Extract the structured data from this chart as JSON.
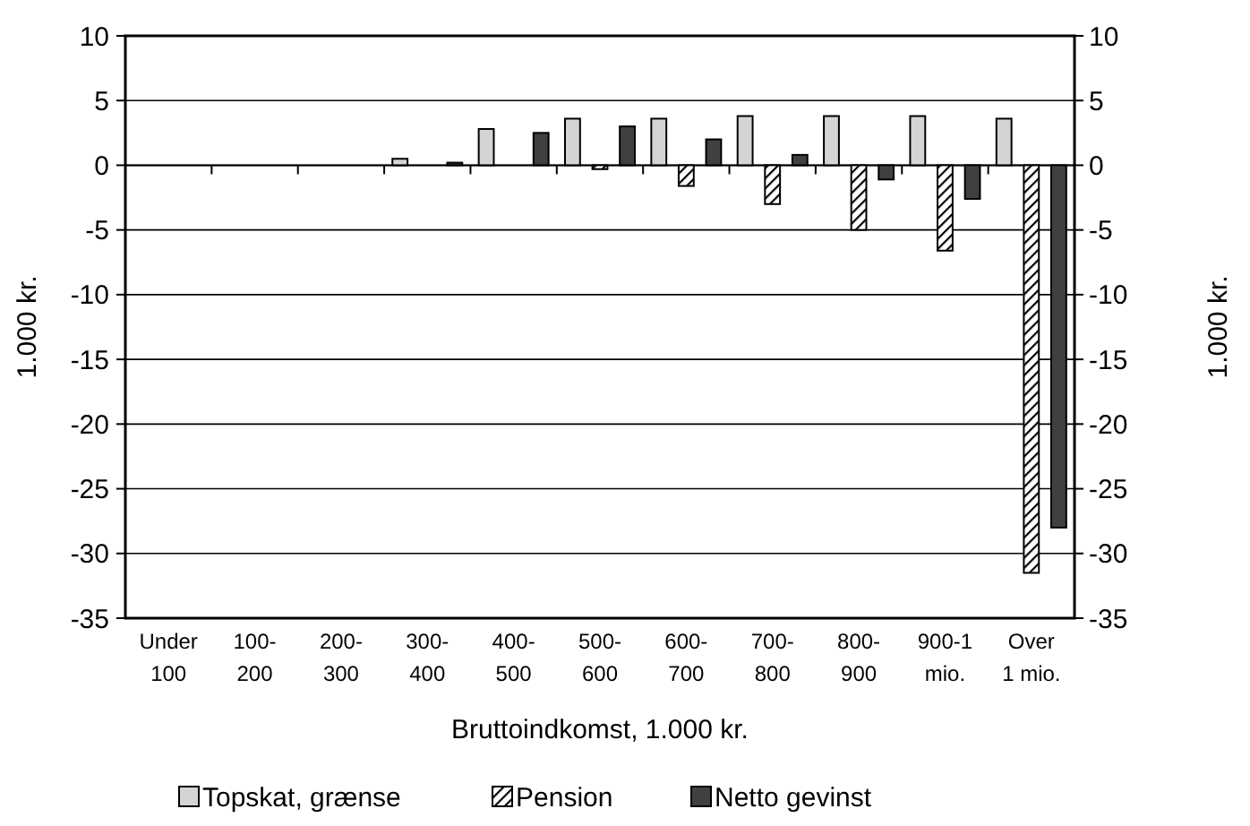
{
  "chart_data": {
    "type": "bar",
    "xlabel": "Bruttoindkomst, 1.000 kr.",
    "ylabel": "1.000 kr.",
    "y2label": "1.000 kr.",
    "categories": [
      "Under 100",
      "100-200",
      "200-300",
      "300-400",
      "400-500",
      "500-600",
      "600-700",
      "700-800",
      "800-900",
      "900-1 mio.",
      "Over 1 mio."
    ],
    "series": [
      {
        "name": "Topskat, grænse",
        "color": "#d4d4d4",
        "values": [
          null,
          null,
          null,
          0.5,
          2.8,
          3.6,
          3.6,
          3.8,
          3.8,
          3.8,
          3.6
        ]
      },
      {
        "name": "Pension",
        "color": "#000000",
        "values": [
          null,
          null,
          null,
          null,
          null,
          -0.3,
          -1.6,
          -3,
          -5,
          -6.6,
          -31.5
        ]
      },
      {
        "name": "Netto gevinst",
        "color": "#404040",
        "values": [
          null,
          null,
          null,
          0.2,
          2.5,
          3,
          2,
          0.8,
          -1.1,
          -2.6,
          -28
        ]
      }
    ],
    "ylim": [
      -35,
      10
    ],
    "yticks": [
      -35,
      -30,
      -25,
      -20,
      -15,
      -10,
      -5,
      0,
      5,
      10
    ],
    "y2lim": [
      -35,
      10
    ],
    "y2ticks": [
      -35,
      -30,
      -25,
      -20,
      -15,
      -10,
      -5,
      0,
      5,
      10
    ],
    "grid": "y",
    "legend": "bottom"
  }
}
